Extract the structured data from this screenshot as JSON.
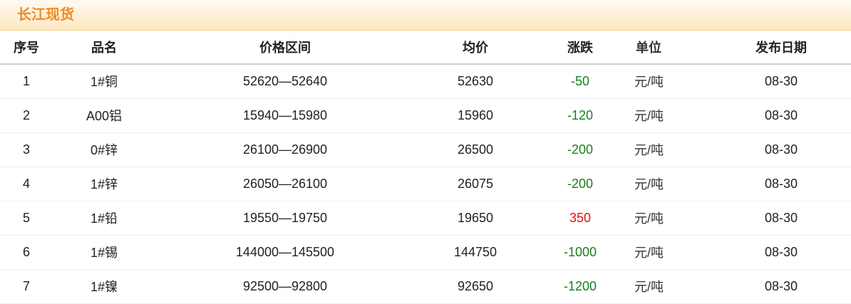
{
  "title": "长江现货",
  "headers": [
    "序号",
    "品名",
    "价格区间",
    "均价",
    "涨跌",
    "单位",
    "发布日期"
  ],
  "colors": {
    "down": "#1a7f1a",
    "up": "#e01010",
    "title": "#f08a24"
  },
  "rows": [
    {
      "no": "1",
      "name": "1#铜",
      "range": "52620—52640",
      "avg": "52630",
      "change": "-50",
      "unit": "元/吨",
      "date": "08-30"
    },
    {
      "no": "2",
      "name": "A00铝",
      "range": "15940—15980",
      "avg": "15960",
      "change": "-120",
      "unit": "元/吨",
      "date": "08-30"
    },
    {
      "no": "3",
      "name": "0#锌",
      "range": "26100—26900",
      "avg": "26500",
      "change": "-200",
      "unit": "元/吨",
      "date": "08-30"
    },
    {
      "no": "4",
      "name": "1#锌",
      "range": "26050—26100",
      "avg": "26075",
      "change": "-200",
      "unit": "元/吨",
      "date": "08-30"
    },
    {
      "no": "5",
      "name": "1#铅",
      "range": "19550—19750",
      "avg": "19650",
      "change": "350",
      "unit": "元/吨",
      "date": "08-30"
    },
    {
      "no": "6",
      "name": "1#锡",
      "range": "144000—145500",
      "avg": "144750",
      "change": "-1000",
      "unit": "元/吨",
      "date": "08-30"
    },
    {
      "no": "7",
      "name": "1#镍",
      "range": "92500—92800",
      "avg": "92650",
      "change": "-1200",
      "unit": "元/吨",
      "date": "08-30"
    }
  ]
}
